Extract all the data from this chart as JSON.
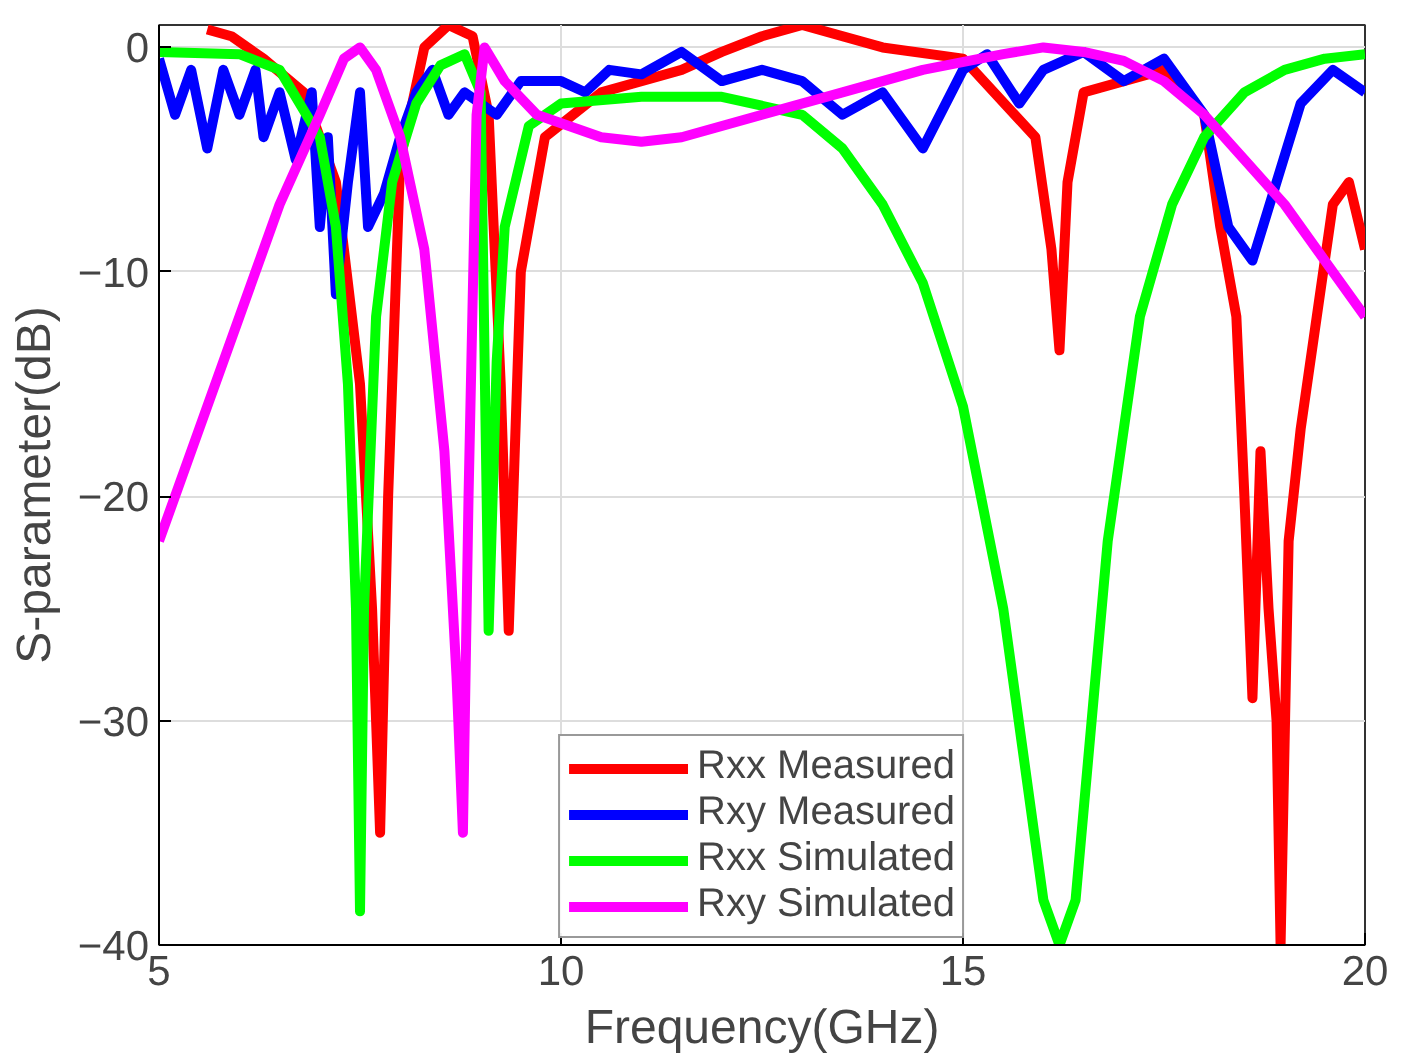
{
  "chart_data": {
    "type": "line",
    "xlabel": "Frequency(GHz)",
    "ylabel": "S-parameter(dB)",
    "xlim": [
      5,
      20
    ],
    "ylim": [
      -40,
      1
    ],
    "xticks": [
      5,
      10,
      15,
      20
    ],
    "yticks": [
      0,
      -10,
      -20,
      -30,
      -40
    ],
    "grid": true,
    "legend": "bottom",
    "line_style": "solid",
    "series": [
      {
        "name": "Rxx Measured",
        "color": "#ff0000",
        "x": [
          5.6,
          5.9,
          6.3,
          6.8,
          7.2,
          7.5,
          7.65,
          7.75,
          7.85,
          8.0,
          8.3,
          8.6,
          8.9,
          9.1,
          9.25,
          9.35,
          9.5,
          9.8,
          10.5,
          11,
          11.5,
          12,
          12.5,
          13,
          14,
          15,
          15.9,
          16.1,
          16.2,
          16.3,
          16.5,
          17.5,
          18,
          18.2,
          18.4,
          18.5,
          18.6,
          18.7,
          18.8,
          18.9,
          18.95,
          19.05,
          19.2,
          19.4,
          19.6,
          19.8,
          20
        ],
        "values": [
          0.8,
          0.5,
          -0.5,
          -2,
          -6,
          -15,
          -25,
          -35,
          -20,
          -5,
          0,
          1,
          0.5,
          -3,
          -15,
          -26,
          -10,
          -4,
          -2,
          -1.5,
          -1,
          -0.2,
          0.5,
          1,
          0,
          -0.5,
          -4,
          -9,
          -13.5,
          -6,
          -2,
          -1,
          -3,
          -8,
          -12,
          -20,
          -29,
          -18,
          -25,
          -30,
          -40,
          -22,
          -17,
          -12,
          -7,
          -6,
          -9
        ]
      },
      {
        "name": "Rxy Measured",
        "color": "#0000ff",
        "x": [
          5,
          5.2,
          5.4,
          5.6,
          5.8,
          6,
          6.2,
          6.3,
          6.5,
          6.7,
          6.9,
          7,
          7.1,
          7.2,
          7.35,
          7.5,
          7.6,
          7.8,
          8,
          8.2,
          8.4,
          8.6,
          8.8,
          9.2,
          9.5,
          10,
          10.3,
          10.6,
          11,
          11.5,
          12,
          12.5,
          13,
          13.5,
          14,
          14.5,
          15,
          15.3,
          15.7,
          16,
          16.5,
          17,
          17.5,
          18,
          18.3,
          18.6,
          18.9,
          19.2,
          19.6,
          20
        ],
        "values": [
          -0.5,
          -3,
          -1,
          -4.5,
          -1,
          -3,
          -1,
          -4,
          -2,
          -5,
          -2,
          -8,
          -4,
          -11,
          -6,
          -2,
          -8,
          -6.5,
          -4,
          -2,
          -1,
          -3,
          -2,
          -3,
          -1.5,
          -1.5,
          -2,
          -1,
          -1.2,
          -0.2,
          -1.5,
          -1,
          -1.5,
          -3,
          -2,
          -4.5,
          -1,
          -0.3,
          -2.5,
          -1,
          -0.2,
          -1.5,
          -0.5,
          -3,
          -8,
          -9.5,
          -6,
          -2.5,
          -1,
          -2
        ]
      },
      {
        "name": "Rxx Simulated",
        "color": "#00ff00",
        "x": [
          5,
          6,
          6.5,
          7,
          7.2,
          7.35,
          7.45,
          7.5,
          7.55,
          7.7,
          7.9,
          8.2,
          8.5,
          8.8,
          9.0,
          9.1,
          9.2,
          9.3,
          9.6,
          10,
          11,
          12,
          13,
          13.5,
          14,
          14.5,
          15,
          15.5,
          16,
          16.2,
          16.4,
          16.8,
          17.2,
          17.6,
          18,
          18.5,
          19,
          19.5,
          20
        ],
        "values": [
          -0.2,
          -0.3,
          -1,
          -4,
          -8,
          -15,
          -25,
          -38.5,
          -25,
          -12,
          -6,
          -2.5,
          -0.8,
          -0.3,
          -2,
          -26,
          -14,
          -8,
          -3.5,
          -2.5,
          -2.2,
          -2.2,
          -3,
          -4.5,
          -7,
          -10.5,
          -16,
          -25,
          -38,
          -40,
          -38,
          -22,
          -12,
          -7,
          -4,
          -2,
          -1,
          -0.5,
          -0.3
        ]
      },
      {
        "name": "Rxy Simulated",
        "color": "#ff00ff",
        "x": [
          5,
          5.5,
          6,
          6.5,
          7,
          7.3,
          7.5,
          7.7,
          8,
          8.3,
          8.55,
          8.7,
          8.78,
          8.85,
          8.95,
          9.05,
          9.3,
          9.7,
          10.5,
          11,
          11.5,
          12.5,
          13.5,
          14.5,
          15.5,
          16,
          16.5,
          17,
          17.5,
          18,
          18.5,
          19,
          19.5,
          20
        ],
        "values": [
          -22,
          -17,
          -12,
          -7,
          -3,
          -0.5,
          0,
          -1,
          -4,
          -9,
          -18,
          -28,
          -35,
          -20,
          -3,
          0,
          -1.5,
          -3,
          -4,
          -4.2,
          -4,
          -3,
          -2,
          -1,
          -0.3,
          0,
          -0.2,
          -0.6,
          -1.5,
          -3,
          -5,
          -7,
          -9.5,
          -12
        ]
      }
    ]
  }
}
